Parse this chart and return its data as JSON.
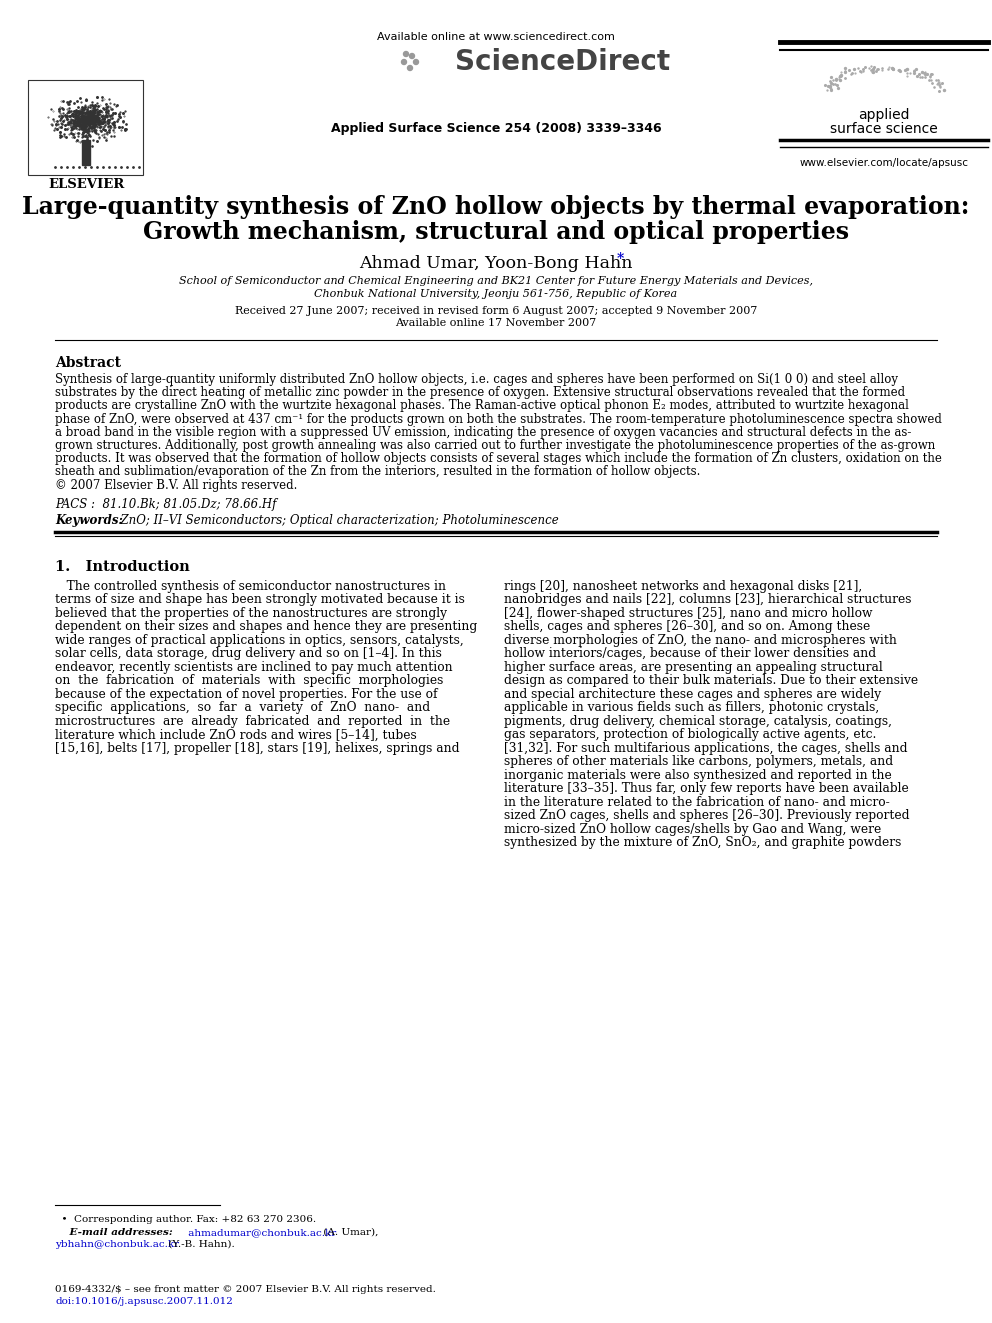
{
  "title_line1": "Large-quantity synthesis of ZnO hollow objects by thermal evaporation:",
  "title_line2": "Growth mechanism, structural and optical properties",
  "authors_plain": "Ahmad Umar, Yoon-Bong Hahn",
  "affiliation1": "School of Semiconductor and Chemical Engineering and BK21 Center for Future Energy Materials and Devices,",
  "affiliation2": "Chonbuk National University, Jeonju 561-756, Republic of Korea",
  "dates": "Received 27 June 2007; received in revised form 6 August 2007; accepted 9 November 2007",
  "available": "Available online 17 November 2007",
  "journal_ref": "Applied Surface Science 254 (2008) 3339–3346",
  "available_online": "Available online at www.sciencedirect.com",
  "journal_name_line1": "applied",
  "journal_name_line2": "surface science",
  "journal_url": "www.elsevier.com/locate/apsusc",
  "elsevier_text": "ELSEVIER",
  "abstract_title": "Abstract",
  "abstract_lines": [
    "Synthesis of large-quantity uniformly distributed ZnO hollow objects, i.e. cages and spheres have been performed on Si(1 0 0) and steel alloy",
    "substrates by the direct heating of metallic zinc powder in the presence of oxygen. Extensive structural observations revealed that the formed",
    "products are crystalline ZnO with the wurtzite hexagonal phases. The Raman-active optical phonon E₂ modes, attributed to wurtzite hexagonal",
    "phase of ZnO, were observed at 437 cm⁻¹ for the products grown on both the substrates. The room-temperature photoluminescence spectra showed",
    "a broad band in the visible region with a suppressed UV emission, indicating the presence of oxygen vacancies and structural defects in the as-",
    "grown structures. Additionally, post growth annealing was also carried out to further investigate the photoluminescence properties of the as-grown",
    "products. It was observed that the formation of hollow objects consists of several stages which include the formation of Zn clusters, oxidation on the",
    "sheath and sublimation/evaporation of the Zn from the interiors, resulted in the formation of hollow objects.",
    "© 2007 Elsevier B.V. All rights reserved."
  ],
  "pacs": "PACS :  81.10.Bk; 81.05.Dz; 78.66.Hf",
  "keywords_label": "Keywords:",
  "keywords_text": "  ZnO; II–VI Semiconductors; Optical characterization; Photoluminescence",
  "section1_title": "1.   Introduction",
  "intro_col1_lines": [
    "   The controlled synthesis of semiconductor nanostructures in",
    "terms of size and shape has been strongly motivated because it is",
    "believed that the properties of the nanostructures are strongly",
    "dependent on their sizes and shapes and hence they are presenting",
    "wide ranges of practical applications in optics, sensors, catalysts,",
    "solar cells, data storage, drug delivery and so on [1–4]. In this",
    "endeavor, recently scientists are inclined to pay much attention",
    "on  the  fabrication  of  materials  with  specific  morphologies",
    "because of the expectation of novel properties. For the use of",
    "specific  applications,  so  far  a  variety  of  ZnO  nano-  and",
    "microstructures  are  already  fabricated  and  reported  in  the",
    "literature which include ZnO rods and wires [5–14], tubes",
    "[15,16], belts [17], propeller [18], stars [19], helixes, springs and"
  ],
  "intro_col2_lines": [
    "rings [20], nanosheet networks and hexagonal disks [21],",
    "nanobridges and nails [22], columns [23], hierarchical structures",
    "[24], flower-shaped structures [25], nano and micro hollow",
    "shells, cages and spheres [26–30], and so on. Among these",
    "diverse morphologies of ZnO, the nano- and microspheres with",
    "hollow interiors/cages, because of their lower densities and",
    "higher surface areas, are presenting an appealing structural",
    "design as compared to their bulk materials. Due to their extensive",
    "and special architecture these cages and spheres are widely",
    "applicable in various fields such as fillers, photonic crystals,",
    "pigments, drug delivery, chemical storage, catalysis, coatings,",
    "gas separators, protection of biologically active agents, etc.",
    "[31,32]. For such multifarious applications, the cages, shells and",
    "spheres of other materials like carbons, polymers, metals, and",
    "inorganic materials were also synthesized and reported in the",
    "literature [33–35]. Thus far, only few reports have been available",
    "in the literature related to the fabrication of nano- and micro-",
    "sized ZnO cages, shells and spheres [26–30]. Previously reported",
    "micro-sized ZnO hollow cages/shells by Gao and Wang, were",
    "synthesized by the mixture of ZnO, SnO₂, and graphite powders"
  ],
  "footnote_line1": "  •  Corresponding author. Fax: +82 63 270 2306.",
  "footnote_line2": "     E-mail addresses:  ahmadumar@chonbuk.ac.kr (A. Umar),",
  "footnote_line3": "ybhahn@chonbuk.ac.kr (Y.-B. Hahn).",
  "footer_issn": "0169-4332/$ – see front matter © 2007 Elsevier B.V. All rights reserved.",
  "footer_doi": "doi:10.1016/j.apsusc.2007.11.012",
  "bg_color": "#ffffff",
  "text_color": "#000000",
  "blue_color": "#0000cc",
  "gray_color": "#555555",
  "lightgray_color": "#888888"
}
